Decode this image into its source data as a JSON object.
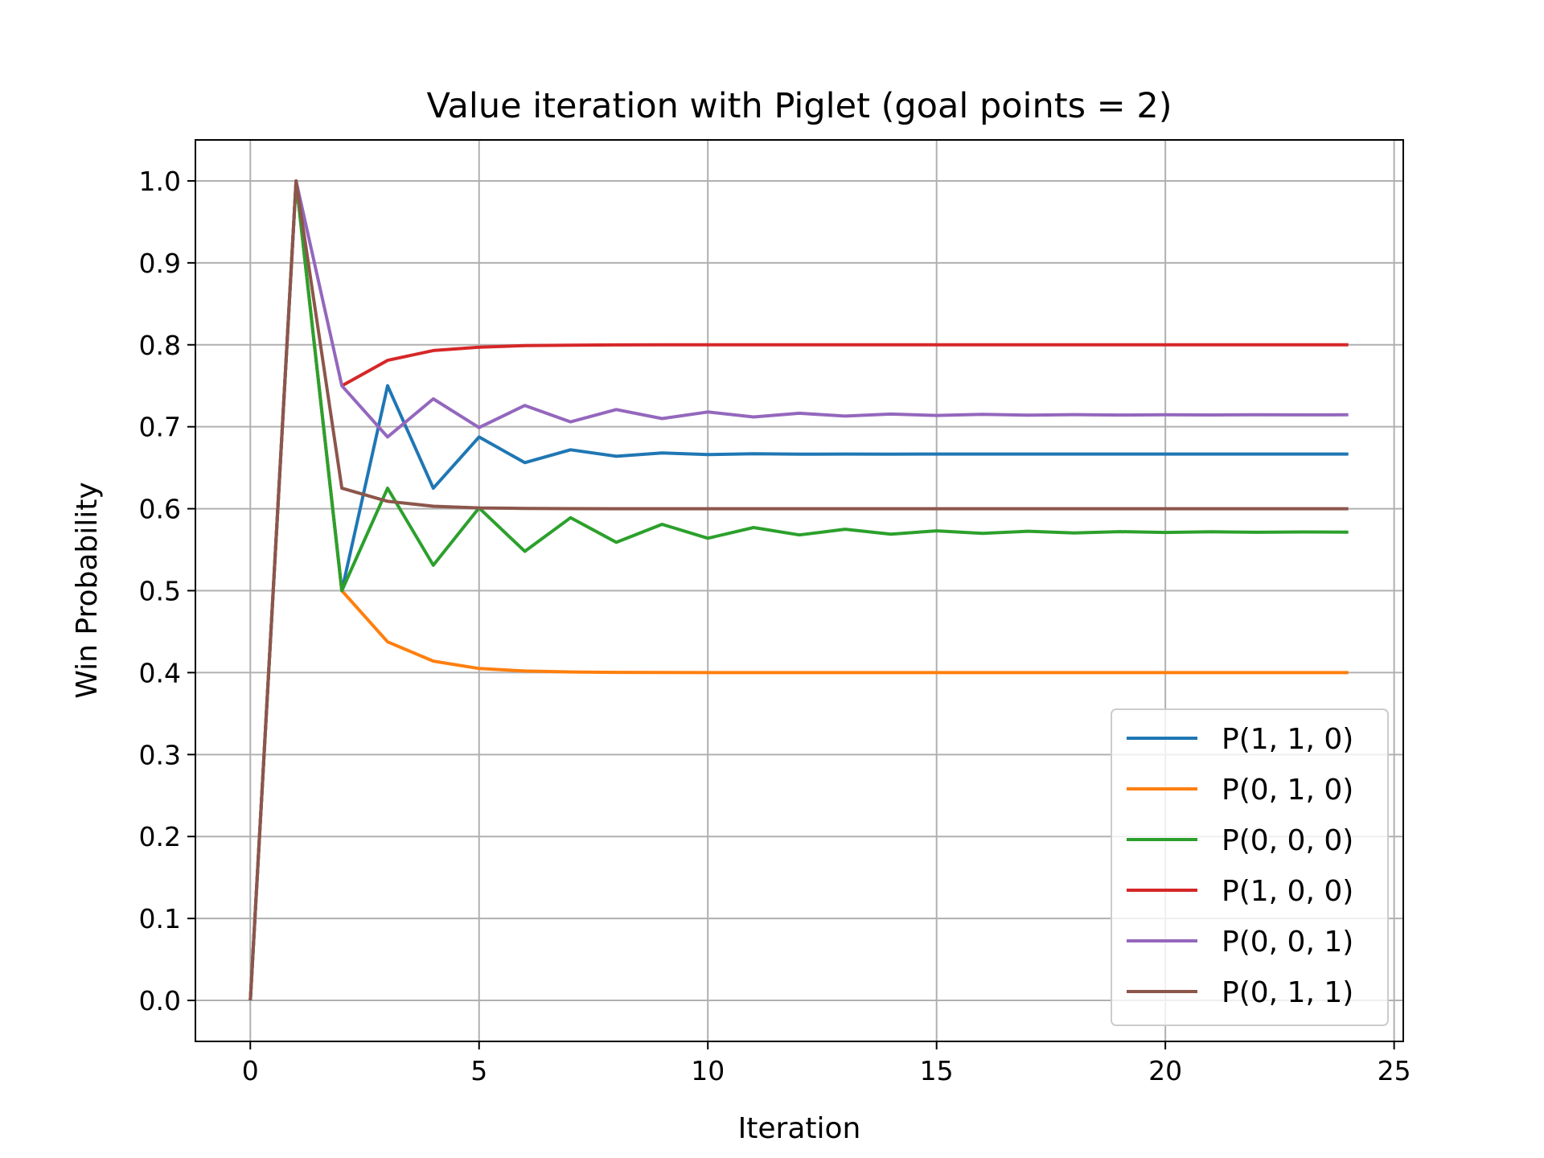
{
  "chart_data": {
    "type": "line",
    "title": "Value iteration with Piglet (goal points = 2)",
    "xlabel": "Iteration",
    "ylabel": "Win Probability",
    "xlim": [
      -1.2,
      25.2
    ],
    "ylim": [
      -0.05,
      1.05
    ],
    "xticks": [
      0,
      5,
      10,
      15,
      20,
      25
    ],
    "yticks": [
      0.0,
      0.1,
      0.2,
      0.3,
      0.4,
      0.5,
      0.6,
      0.7,
      0.8,
      0.9,
      1.0
    ],
    "grid": true,
    "legend_position": "lower-right",
    "x": [
      0,
      1,
      2,
      3,
      4,
      5,
      6,
      7,
      8,
      9,
      10,
      11,
      12,
      13,
      14,
      15,
      16,
      17,
      18,
      19,
      20,
      21,
      22,
      23,
      24
    ],
    "series": [
      {
        "name": "P(1, 1, 0)",
        "color": "#1f77b4",
        "values": [
          0,
          1.0,
          0.5,
          0.75,
          0.625,
          0.6875,
          0.65625,
          0.671875,
          0.664,
          0.668,
          0.666,
          0.667,
          0.6665,
          0.6667,
          0.6666,
          0.6667,
          0.6667,
          0.6667,
          0.6667,
          0.6667,
          0.6667,
          0.6667,
          0.6667,
          0.6667,
          0.6667
        ]
      },
      {
        "name": "P(0, 1, 0)",
        "color": "#ff7f0e",
        "values": [
          0,
          1.0,
          0.5,
          0.4375,
          0.414,
          0.405,
          0.402,
          0.4008,
          0.4003,
          0.4001,
          0.4,
          0.4,
          0.4,
          0.4,
          0.4,
          0.4,
          0.4,
          0.4,
          0.4,
          0.4,
          0.4,
          0.4,
          0.4,
          0.4,
          0.4
        ]
      },
      {
        "name": "P(0, 0, 0)",
        "color": "#2ca02c",
        "values": [
          0,
          1.0,
          0.5,
          0.625,
          0.531,
          0.601,
          0.548,
          0.589,
          0.559,
          0.581,
          0.564,
          0.577,
          0.568,
          0.575,
          0.569,
          0.573,
          0.57,
          0.5725,
          0.5705,
          0.572,
          0.571,
          0.5718,
          0.5712,
          0.5716,
          0.5714
        ]
      },
      {
        "name": "P(1, 0, 0)",
        "color": "#d62728",
        "values": [
          null,
          null,
          0.75,
          0.781,
          0.793,
          0.797,
          0.799,
          0.7996,
          0.7999,
          0.8,
          0.8,
          0.8,
          0.8,
          0.8,
          0.8,
          0.8,
          0.8,
          0.8,
          0.8,
          0.8,
          0.8,
          0.8,
          0.8,
          0.8,
          0.8
        ]
      },
      {
        "name": "P(0, 0, 1)",
        "color": "#9467bd",
        "values": [
          0,
          1.0,
          0.75,
          0.6875,
          0.734,
          0.699,
          0.726,
          0.706,
          0.721,
          0.71,
          0.718,
          0.712,
          0.7165,
          0.713,
          0.7155,
          0.7138,
          0.7151,
          0.7141,
          0.7148,
          0.7143,
          0.7147,
          0.7144,
          0.7146,
          0.7145,
          0.7146
        ]
      },
      {
        "name": "P(0, 1, 1)",
        "color": "#8c564b",
        "values": [
          0,
          1.0,
          0.625,
          0.609,
          0.603,
          0.601,
          0.6004,
          0.6001,
          0.6,
          0.6,
          0.6,
          0.6,
          0.6,
          0.6,
          0.6,
          0.6,
          0.6,
          0.6,
          0.6,
          0.6,
          0.6,
          0.6,
          0.6,
          0.6,
          0.6
        ]
      }
    ]
  }
}
